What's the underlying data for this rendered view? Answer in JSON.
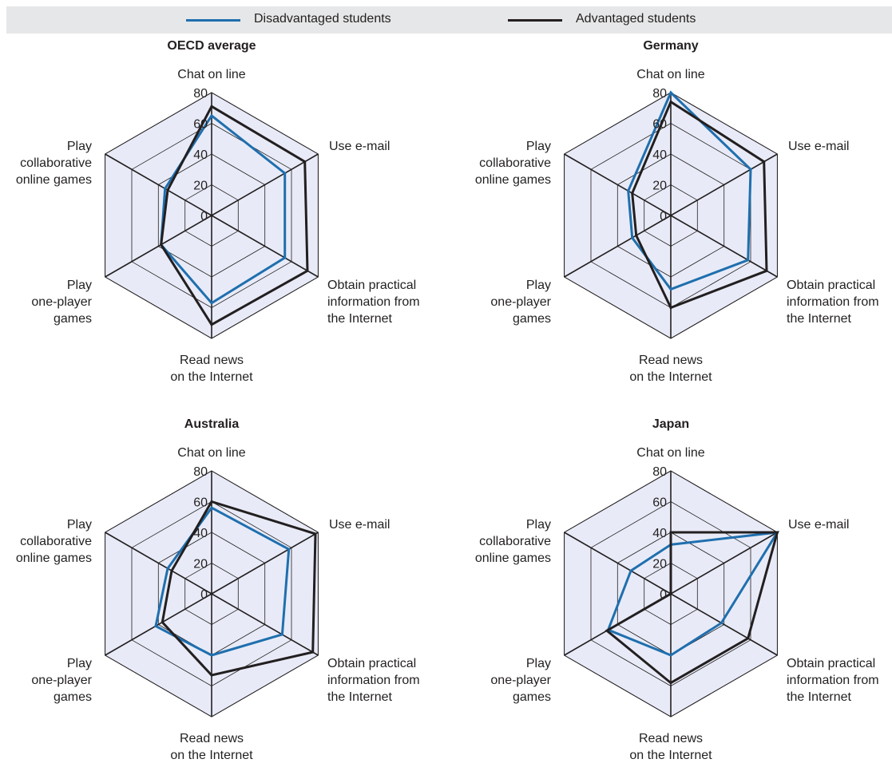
{
  "legend": {
    "disadvantaged": "Disadvantaged students",
    "advantaged": "Advantaged students"
  },
  "colors": {
    "disadvantaged": "#1f6fae",
    "advantaged": "#231f20",
    "grid_fill": "#e8ebf7"
  },
  "chart_data": [
    {
      "type": "radar",
      "title": "OECD average",
      "axes": [
        "Chat on line",
        "Use e-mail",
        "Obtain practical information from the Internet",
        "Read news on the Internet",
        "Play one-player games",
        "Play collaborative online games"
      ],
      "ticks": [
        0,
        20,
        40,
        60,
        80
      ],
      "rlim": [
        0,
        80
      ],
      "series": [
        {
          "name": "Disadvantaged students",
          "values": [
            65,
            55,
            55,
            57,
            38,
            35
          ]
        },
        {
          "name": "Advantaged students",
          "values": [
            71,
            70,
            72,
            71,
            38,
            33
          ]
        }
      ]
    },
    {
      "type": "radar",
      "title": "Germany",
      "axes": [
        "Chat on line",
        "Use e-mail",
        "Obtain practical information from the Internet",
        "Read news on the Internet",
        "Play one-player games",
        "Play collaborative online games"
      ],
      "ticks": [
        0,
        20,
        40,
        60,
        80
      ],
      "rlim": [
        0,
        80
      ],
      "series": [
        {
          "name": "Disadvantaged students",
          "values": [
            80,
            60,
            58,
            48,
            29,
            32
          ]
        },
        {
          "name": "Advantaged students",
          "values": [
            74,
            70,
            72,
            60,
            26,
            29
          ]
        }
      ]
    },
    {
      "type": "radar",
      "title": "Australia",
      "axes": [
        "Chat on line",
        "Use e-mail",
        "Obtain practical information from the Internet",
        "Read news on the Internet",
        "Play one-player games",
        "Play collaborative online games"
      ],
      "ticks": [
        0,
        20,
        40,
        60,
        80
      ],
      "rlim": [
        0,
        80
      ],
      "series": [
        {
          "name": "Disadvantaged students",
          "values": [
            56,
            58,
            53,
            40,
            42,
            33
          ]
        },
        {
          "name": "Advantaged students",
          "values": [
            60,
            78,
            76,
            53,
            37,
            30
          ]
        }
      ]
    },
    {
      "type": "radar",
      "title": "Japan",
      "axes": [
        "Chat on line",
        "Use e-mail",
        "Obtain practical information from the Internet",
        "Read news on the Internet",
        "Play one-player games",
        "Play collaborative online games"
      ],
      "ticks": [
        0,
        20,
        40,
        60,
        80
      ],
      "rlim": [
        0,
        80
      ],
      "series": [
        {
          "name": "Disadvantaged students",
          "values": [
            32,
            80,
            38,
            40,
            47,
            30
          ]
        },
        {
          "name": "Advantaged students",
          "values": [
            40,
            80,
            58,
            58,
            48,
            0
          ]
        }
      ]
    }
  ]
}
